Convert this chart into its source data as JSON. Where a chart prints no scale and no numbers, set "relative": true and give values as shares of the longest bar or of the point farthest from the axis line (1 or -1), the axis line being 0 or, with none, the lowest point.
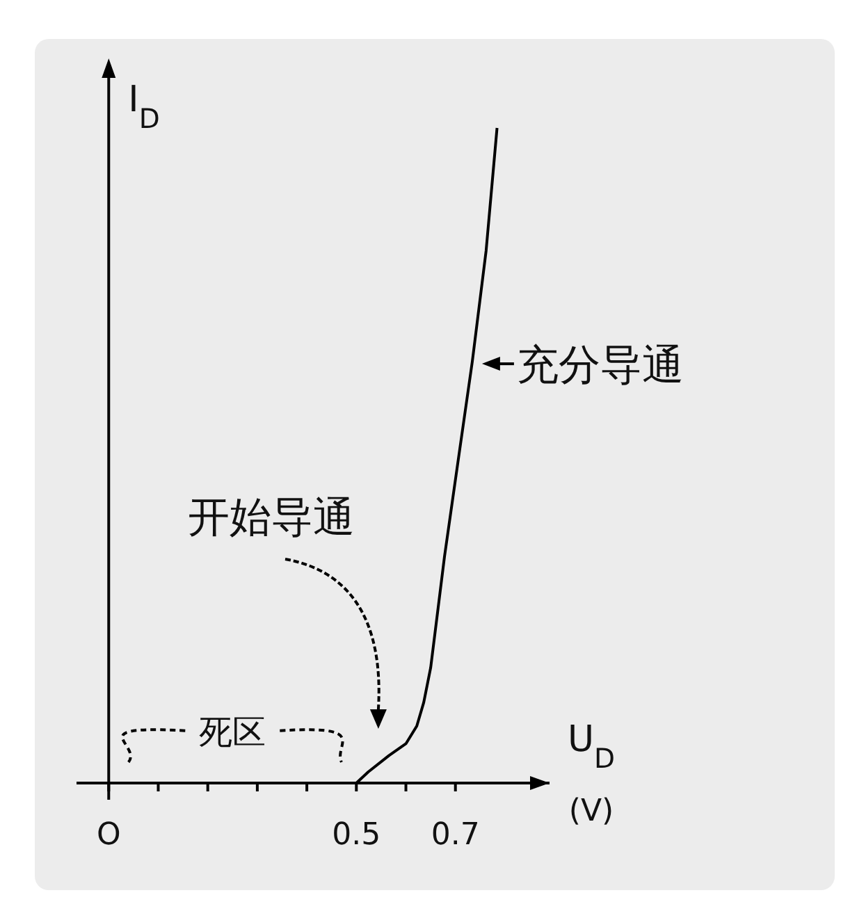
{
  "chart_data": {
    "type": "line",
    "relative": true,
    "xlabel": "U$_{D}$ (V)",
    "ylabel": "I$_{D}$",
    "xlim": [
      -0.065,
      0.89
    ],
    "xticks": [
      {
        "value": 0,
        "label": "O"
      },
      {
        "value": 0.1,
        "label": null
      },
      {
        "value": 0.2,
        "label": null
      },
      {
        "value": 0.3,
        "label": null
      },
      {
        "value": 0.4,
        "label": null
      },
      0.5,
      {
        "value": 0.6,
        "label": null
      },
      0.7
    ],
    "series": [
      {
        "color": "#000000",
        "x": [
          0,
          0.5,
          0.524,
          0.566,
          0.6,
          0.622,
          0.636,
          0.65,
          0.664,
          0.678,
          0.706,
          0.734,
          0.762,
          0.784
        ],
        "values": [
          0,
          0,
          0.017,
          0.042,
          0.06,
          0.087,
          0.123,
          0.176,
          0.261,
          0.346,
          0.495,
          0.643,
          0.813,
          1
        ]
      }
    ],
    "annotations": [
      "死区",
      "开始导通",
      {
        "text": "充分导通",
        "x": 0.748,
        "y": 0.64
      }
    ]
  }
}
